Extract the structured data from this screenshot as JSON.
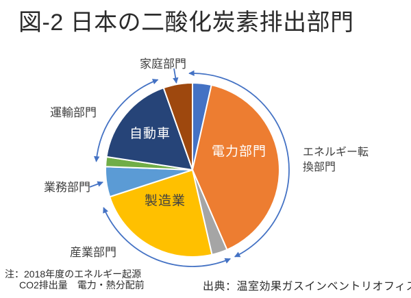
{
  "title": "図-2 日本の二酸化炭素排出部門",
  "note_line1": "注：2018年度のエネルギー起源",
  "note_line2": "CO2排出量　電力・熱分配前",
  "source": "出典：温室効果ガスインベントリオフィス",
  "chart_data": {
    "type": "pie",
    "title": "図-2 日本の二酸化炭素排出部門",
    "values_unit": "%",
    "start_angle_deg": 0,
    "direction": "clockwise",
    "slices": [
      {
        "label": "",
        "value": 3.5,
        "color": "#4472C4"
      },
      {
        "label": "電力部門",
        "value": 40.0,
        "color": "#ED7D31"
      },
      {
        "label": "",
        "value": 2.9,
        "color": "#A5A5A5"
      },
      {
        "label": "製造業",
        "value": 23.6,
        "color": "#FFC000"
      },
      {
        "label": "業務部門",
        "value": 5.6,
        "color": "#5B9BD5"
      },
      {
        "label": "",
        "value": 1.8,
        "color": "#70AD47"
      },
      {
        "label": "自動車",
        "value": 17.2,
        "color": "#264478"
      },
      {
        "label": "家庭部門",
        "value": 5.4,
        "color": "#9E480E"
      }
    ],
    "group_annotations": [
      {
        "label": "エネルギー転換部門",
        "arc_from_deg": -2,
        "arc_to_deg": 154
      },
      {
        "label": "産業部門",
        "arc_from_deg": 157,
        "arc_to_deg": 247
      },
      {
        "label": "運輸部門",
        "arc_from_deg": 275,
        "arc_to_deg": 339
      }
    ],
    "annotation_color": "#4472C4",
    "legend": "none",
    "grid": false
  }
}
